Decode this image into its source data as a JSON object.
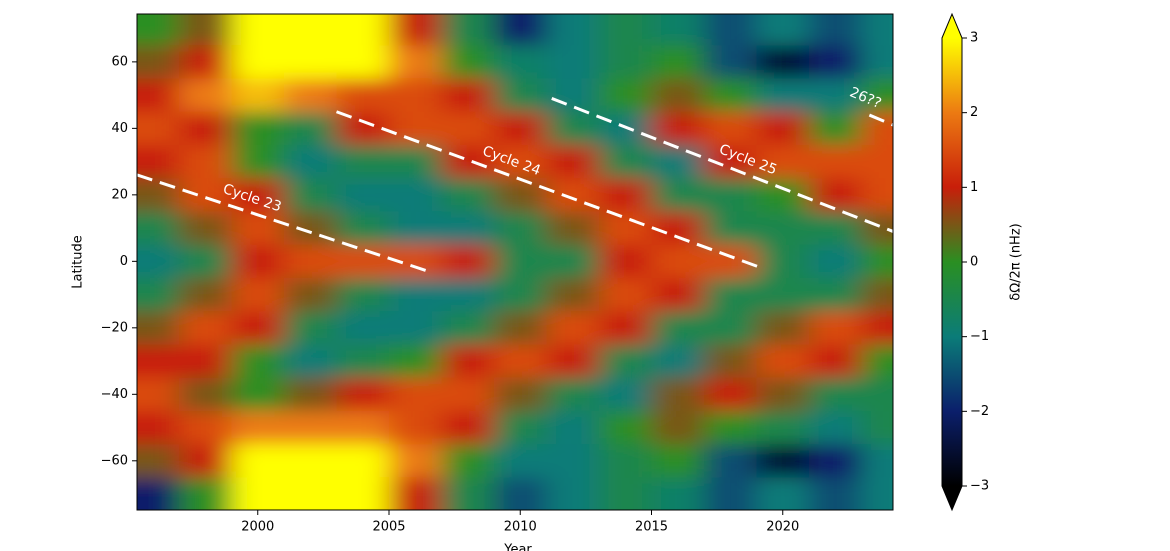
{
  "chart_data": {
    "type": "heatmap",
    "x_label": "Year",
    "y_label": "Latitude",
    "colorbar_label": "δΩ/2π (nHz)",
    "x": [
      1996,
      1998,
      2000,
      2002,
      2004,
      2006,
      2008,
      2010,
      2012,
      2014,
      2016,
      2018,
      2020,
      2022,
      2024
    ],
    "y": [
      70,
      60,
      50,
      40,
      30,
      20,
      10,
      0,
      -10,
      -20,
      -30,
      -40,
      -50,
      -60,
      -70
    ],
    "z": [
      [
        0,
        0.5,
        3,
        3,
        3,
        1,
        -0.5,
        -2,
        -1,
        -0.5,
        -0.8,
        -1.5,
        -1,
        -1.5,
        -1
      ],
      [
        0.5,
        1,
        3,
        3,
        3,
        2,
        0,
        -0.8,
        -1,
        -0.5,
        0,
        -1.5,
        -2.5,
        -2,
        -1
      ],
      [
        1,
        2,
        2.5,
        2,
        1.5,
        1.5,
        1,
        -0.5,
        -1,
        0,
        0.5,
        0,
        -1,
        -1,
        0
      ],
      [
        1.5,
        1,
        0,
        -0.5,
        1,
        1.5,
        1.5,
        1,
        -0.5,
        -1,
        1,
        1.5,
        1,
        0,
        1.5
      ],
      [
        1,
        1.5,
        0,
        -1,
        -0.5,
        -0.5,
        1,
        1.5,
        1,
        -0.5,
        -1,
        1,
        1.5,
        1.5,
        1.5
      ],
      [
        0.5,
        1.5,
        1,
        -0.5,
        -1,
        -1,
        -0.5,
        0.5,
        1.5,
        1,
        -0.5,
        -0.5,
        0,
        1,
        1.5
      ],
      [
        -0.5,
        0.5,
        1.5,
        0.5,
        -0.5,
        -1,
        -1,
        -0.5,
        0.5,
        1.5,
        1,
        -0.5,
        -0.5,
        -0.5,
        0.5
      ],
      [
        -1,
        -0.5,
        1,
        1.5,
        1.5,
        1.5,
        1,
        -0.5,
        -0.5,
        1,
        1.5,
        1.5,
        -0.5,
        -1,
        0
      ],
      [
        -0.5,
        0.5,
        1.5,
        0.5,
        -0.5,
        -1,
        -1,
        -0.5,
        0.5,
        1.5,
        1,
        -0.5,
        -0.5,
        -0.5,
        0.5
      ],
      [
        0.5,
        1.5,
        1,
        -0.5,
        -1,
        -1,
        -0.5,
        0.5,
        1.5,
        1,
        -0.5,
        -0.5,
        0.5,
        1.5,
        1
      ],
      [
        1,
        1,
        0,
        -1,
        -0.5,
        0,
        1,
        1.5,
        1,
        -0.5,
        -1,
        0.5,
        1.5,
        1,
        0
      ],
      [
        1.5,
        0.5,
        0,
        0.5,
        1,
        1.5,
        1.5,
        0.5,
        -0.5,
        -1,
        0.5,
        1,
        0.5,
        -0.5,
        -0.5
      ],
      [
        1,
        1.5,
        2,
        2,
        2,
        1.5,
        1,
        -0.5,
        -1,
        0,
        0.5,
        0,
        -0.5,
        -1,
        -0.5
      ],
      [
        0.5,
        1,
        3,
        3,
        3,
        2,
        0,
        -1,
        -1,
        -0.5,
        0,
        -1.5,
        -2.5,
        -2,
        -1
      ],
      [
        -2,
        0,
        3,
        3,
        3,
        1,
        -0.5,
        -1.5,
        -1,
        -0.5,
        -0.8,
        -1.5,
        -1,
        -1.5,
        -1
      ]
    ],
    "colormap": [
      "#000000",
      "#0b1f6b",
      "#0b7c78",
      "#2a8f22",
      "#c81e0a",
      "#ec7a12",
      "#ffff00"
    ],
    "clim": [
      -3,
      3
    ],
    "cticks": [
      {
        "value": -3,
        "label": "−3"
      },
      {
        "value": -2,
        "label": "−2"
      },
      {
        "value": -1,
        "label": "−1"
      },
      0,
      1,
      2,
      3
    ],
    "xlim": [
      1995.4,
      2024.2
    ],
    "ylim": [
      -74.8,
      74.4
    ],
    "xticks": [
      2000,
      2005,
      2010,
      2015,
      2020
    ],
    "yticks": [
      {
        "value": -60,
        "label": "−60"
      },
      {
        "value": -40,
        "label": "−40"
      },
      {
        "value": -20,
        "label": "−20"
      },
      0,
      20,
      40,
      60
    ],
    "annotations": [
      {
        "text": "Cycle 23",
        "x": [
          1995.4,
          2006.5
        ],
        "y": [
          26,
          -3
        ]
      },
      {
        "text": "Cycle 24",
        "x": [
          2003,
          2019.2
        ],
        "y": [
          45,
          -2
        ]
      },
      {
        "text": "Cycle 25",
        "x": [
          2011.2,
          2024.2
        ],
        "y": [
          49,
          9
        ]
      },
      {
        "text": "26??",
        "x": [
          2023.3,
          2024.2
        ],
        "y": [
          44,
          41
        ]
      }
    ],
    "annotation_color": "#ffffff"
  }
}
